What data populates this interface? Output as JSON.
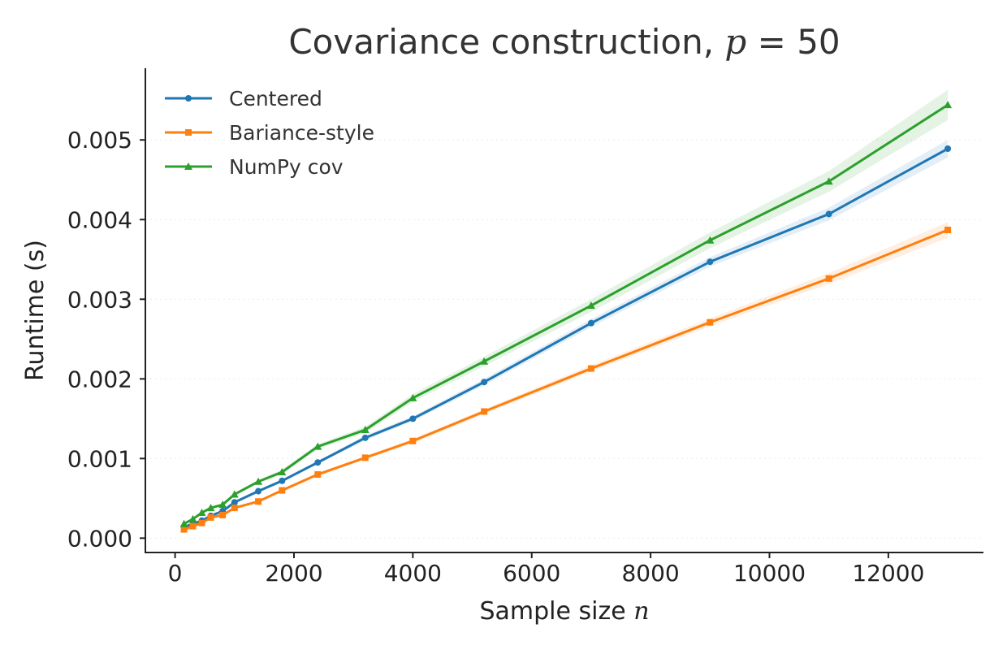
{
  "chart_data": {
    "type": "line",
    "title_prefix": "Covariance construction, ",
    "title_var": "p",
    "title_suffix": " = 50",
    "xlabel_prefix": "Sample size ",
    "xlabel_var": "n",
    "ylabel": "Runtime (s)",
    "xlim": [
      -500,
      13600
    ],
    "ylim": [
      -0.00018,
      0.0059
    ],
    "xticks": [
      0,
      2000,
      4000,
      6000,
      8000,
      10000,
      12000
    ],
    "xtick_labels": [
      "0",
      "2000",
      "4000",
      "6000",
      "8000",
      "10000",
      "12000"
    ],
    "yticks": [
      0,
      0.001,
      0.002,
      0.003,
      0.004,
      0.005
    ],
    "ytick_labels": [
      "0.000",
      "0.001",
      "0.002",
      "0.003",
      "0.004",
      "0.005"
    ],
    "legend_position": "top-left",
    "grid": "horizontal",
    "x": [
      150,
      300,
      450,
      600,
      800,
      1000,
      1400,
      1800,
      2400,
      3200,
      4000,
      5200,
      7000,
      9000,
      11000,
      13000
    ],
    "series": [
      {
        "name": "Centered",
        "color": "#1f77b4",
        "marker": "circle",
        "values": [
          0.00014,
          0.00018,
          0.00022,
          0.00028,
          0.00034,
          0.00045,
          0.00059,
          0.00072,
          0.00095,
          0.00126,
          0.0015,
          0.00196,
          0.0027,
          0.00347,
          0.00407,
          0.00489
        ],
        "band": [
          1e-05,
          1e-05,
          1e-05,
          1e-05,
          1e-05,
          1e-05,
          2e-05,
          2e-05,
          2e-05,
          3e-05,
          3e-05,
          4e-05,
          5e-05,
          6e-05,
          8e-05,
          0.00011
        ]
      },
      {
        "name": "Bariance-style",
        "color": "#ff7f0e",
        "marker": "square",
        "values": [
          0.00011,
          0.00015,
          0.00019,
          0.00026,
          0.00029,
          0.00038,
          0.00046,
          0.0006,
          0.0008,
          0.00101,
          0.00122,
          0.00159,
          0.00213,
          0.00271,
          0.00326,
          0.00387
        ],
        "band": [
          1e-05,
          1e-05,
          1e-05,
          1e-05,
          1e-05,
          1e-05,
          1e-05,
          2e-05,
          2e-05,
          2e-05,
          3e-05,
          3e-05,
          4e-05,
          5e-05,
          7e-05,
          0.0001
        ]
      },
      {
        "name": "NumPy cov",
        "color": "#2ca02c",
        "marker": "triangle",
        "values": [
          0.00018,
          0.00024,
          0.00032,
          0.00038,
          0.00042,
          0.00055,
          0.00071,
          0.00083,
          0.00115,
          0.00136,
          0.00176,
          0.00222,
          0.00292,
          0.00374,
          0.00448,
          0.00544
        ],
        "band": [
          1e-05,
          1e-05,
          1e-05,
          1e-05,
          2e-05,
          2e-05,
          2e-05,
          3e-05,
          3e-05,
          4e-05,
          5e-05,
          6e-05,
          8e-05,
          0.0001,
          0.00013,
          0.00019
        ]
      }
    ]
  }
}
